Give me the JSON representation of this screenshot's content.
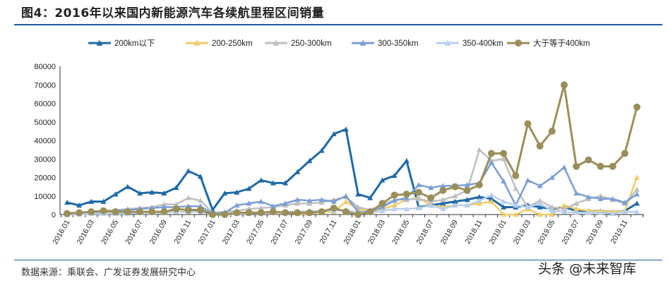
{
  "title": "图4：2016年以来国内新能源汽车各续航里程区间销量",
  "source": "数据来源：乘联会、广发证券发展研究中心",
  "watermark": "头条 @未来智库",
  "chart_data": {
    "type": "line",
    "title": "图4：2016年以来国内新能源汽车各续航里程区间销量",
    "xlabel": "",
    "ylabel": "",
    "ylim": [
      0,
      80000
    ],
    "yticks": [
      "0",
      "10000",
      "20000",
      "30000",
      "40000",
      "50000",
      "60000",
      "70000",
      "80000"
    ],
    "x": [
      "2016.01",
      "2016.02",
      "2016.03",
      "2016.04",
      "2016.05",
      "2016.06",
      "2016.07",
      "2016.08",
      "2016.09",
      "2016.10",
      "2016.11",
      "2016.12",
      "2017.01",
      "2017.02",
      "2017.03",
      "2017.04",
      "2017.05",
      "2017.06",
      "2017.07",
      "2017.08",
      "2017.09",
      "2017.10",
      "2017.11",
      "2017.12",
      "2018.01",
      "2018.02",
      "2018.03",
      "2018.04",
      "2018.05",
      "2018.06",
      "2018.07",
      "2018.08",
      "2018.09",
      "2018.10",
      "2018.11",
      "2018.12",
      "2019.01",
      "2019.02",
      "2019.03",
      "2019.04",
      "2019.05",
      "2019.06",
      "2019.07",
      "2019.08",
      "2019.09",
      "2019.10",
      "2019.11",
      "2019.12"
    ],
    "xtick_labels": [
      "2016.01",
      "2016.03",
      "2016.05",
      "2016.07",
      "2016.09",
      "2016.11",
      "2017.01",
      "2017.03",
      "2017.05",
      "2017.07",
      "2017.09",
      "2017.11",
      "2018.01",
      "2018.03",
      "2018.05",
      "2018.07",
      "2018.09",
      "2018.11",
      "2019.01",
      "2019.03",
      "2019.05",
      "2019.07",
      "2019.09",
      "2019.11"
    ],
    "legend_position": "top",
    "grid": false,
    "series": [
      {
        "name": "200km以下",
        "color": "#1f6aa5",
        "marker": "triangle",
        "values": [
          6500,
          5000,
          7000,
          7000,
          11000,
          15000,
          11500,
          12000,
          11500,
          14500,
          23500,
          20500,
          2500,
          11500,
          12000,
          14000,
          18500,
          17000,
          17000,
          23000,
          29000,
          34500,
          43500,
          46000,
          11000,
          9000,
          18500,
          21000,
          29000,
          4000,
          5000,
          6000,
          7000,
          8000,
          9500,
          8500,
          4000,
          4000,
          5000,
          4000,
          3000,
          4000,
          2000,
          2000,
          2000,
          1500,
          2000,
          6000
        ]
      },
      {
        "name": "200-250km",
        "color": "#f0cc6a",
        "marker": "triangle",
        "values": [
          500,
          500,
          1000,
          1000,
          1500,
          1500,
          1500,
          1500,
          1500,
          1500,
          1500,
          1500,
          0,
          500,
          800,
          1000,
          1000,
          1000,
          1000,
          500,
          500,
          1500,
          1500,
          7000,
          3000,
          2000,
          3000,
          5000,
          8000,
          9000,
          5000,
          4000,
          5000,
          5000,
          6000,
          7000,
          0,
          0,
          3000,
          0,
          0,
          5000,
          3000,
          2000,
          2000,
          1500,
          2000,
          20000
        ]
      },
      {
        "name": "250-300km",
        "color": "#bfbfbf",
        "marker": "triangle",
        "values": [
          1000,
          1000,
          1500,
          2000,
          2500,
          3000,
          3500,
          4000,
          5500,
          5500,
          9000,
          7500,
          1000,
          1500,
          2000,
          3000,
          3500,
          4000,
          5000,
          6000,
          6000,
          6500,
          8000,
          9500,
          4000,
          2500,
          5000,
          8000,
          8000,
          8500,
          7000,
          8000,
          10000,
          13000,
          35000,
          29000,
          30000,
          14000,
          4000,
          7500,
          4000,
          3000,
          6000,
          8500,
          10000,
          8000,
          6000,
          13500
        ]
      },
      {
        "name": "300-350km",
        "color": "#7a9fd4",
        "marker": "triangle",
        "values": [
          500,
          500,
          1000,
          1500,
          2000,
          2500,
          3000,
          3500,
          4000,
          4000,
          4500,
          4500,
          500,
          1000,
          5000,
          6000,
          7000,
          4500,
          6000,
          8000,
          7500,
          8000,
          7000,
          10000,
          1500,
          1500,
          4000,
          7500,
          9000,
          16000,
          14500,
          15500,
          15500,
          16000,
          17000,
          28000,
          18000,
          5000,
          18500,
          15500,
          20000,
          25500,
          11500,
          9500,
          8500,
          8500,
          6500,
          11000
        ]
      },
      {
        "name": "350-400km",
        "color": "#b8d0ec",
        "marker": "triangle",
        "values": [
          0,
          0,
          500,
          500,
          500,
          500,
          1000,
          1000,
          1000,
          1500,
          1500,
          1500,
          0,
          0,
          500,
          500,
          1000,
          1000,
          1500,
          1500,
          2000,
          2000,
          2000,
          2500,
          1000,
          1000,
          2000,
          3000,
          3000,
          3500,
          5000,
          3000,
          5000,
          5000,
          7500,
          10500,
          7000,
          5000,
          4000,
          6000,
          2000,
          1500,
          1000,
          1000,
          1000,
          500,
          1500,
          1500
        ]
      },
      {
        "name": "大于等于400km",
        "color": "#9a8f5a",
        "marker": "circle",
        "values": [
          500,
          1000,
          1500,
          2000,
          1500,
          1500,
          1500,
          1500,
          1500,
          3000,
          2500,
          2500,
          0,
          0,
          1000,
          1000,
          1000,
          1500,
          1000,
          1000,
          1000,
          1500,
          3500,
          1500,
          0,
          1500,
          6000,
          10500,
          11000,
          12000,
          9000,
          13000,
          15000,
          13000,
          16000,
          33000,
          33000,
          21000,
          49000,
          37000,
          45000,
          70000,
          26000,
          29500,
          26000,
          26000,
          33000,
          58000
        ]
      }
    ]
  }
}
